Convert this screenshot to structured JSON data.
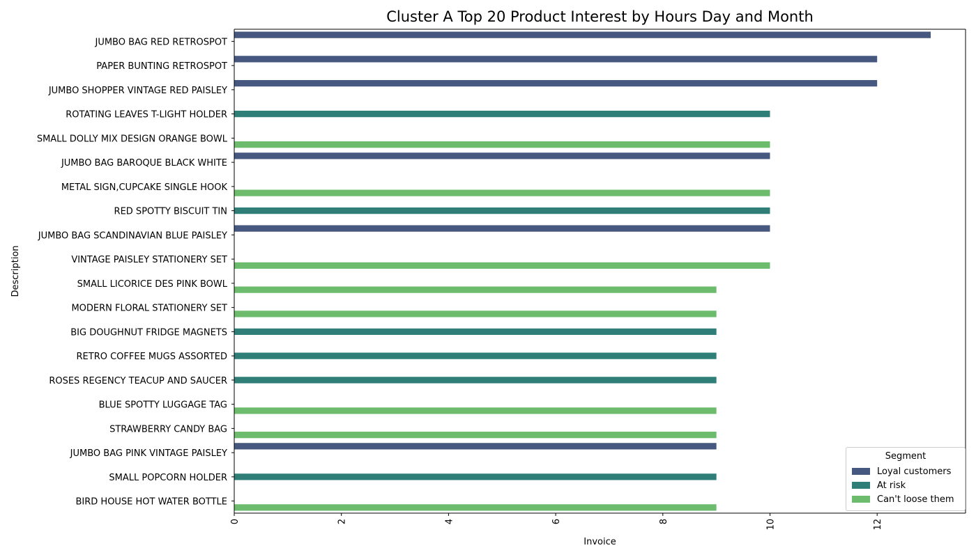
{
  "chart_data": {
    "type": "bar",
    "orientation": "horizontal",
    "title": "Cluster A Top 20 Product Interest by Hours Day and Month",
    "xlabel": "Invoice",
    "ylabel": "Description",
    "xlim": [
      0,
      13.65
    ],
    "xticks": [
      0,
      2,
      4,
      6,
      8,
      10,
      12
    ],
    "xtick_rotation": 90,
    "grid": false,
    "legend": {
      "title": "Segment",
      "position": "lower right"
    },
    "series": [
      {
        "name": "Loyal customers",
        "color": "#46587f"
      },
      {
        "name": "At risk",
        "color": "#2f7f78"
      },
      {
        "name": "Can't loose them",
        "color": "#6dbc6d"
      }
    ],
    "categories": [
      {
        "label": "JUMBO BAG RED RETROSPOT",
        "segment": "Loyal customers",
        "value": 13
      },
      {
        "label": "PAPER BUNTING RETROSPOT",
        "segment": "Loyal customers",
        "value": 12
      },
      {
        "label": "JUMBO SHOPPER VINTAGE RED PAISLEY",
        "segment": "Loyal customers",
        "value": 12
      },
      {
        "label": "ROTATING LEAVES T-LIGHT HOLDER",
        "segment": "At risk",
        "value": 10
      },
      {
        "label": "SMALL DOLLY MIX DESIGN ORANGE BOWL",
        "segment": "Can't loose them",
        "value": 10
      },
      {
        "label": "JUMBO  BAG BAROQUE BLACK WHITE",
        "segment": "Loyal customers",
        "value": 10
      },
      {
        "label": "METAL SIGN,CUPCAKE SINGLE HOOK",
        "segment": "Can't loose them",
        "value": 10
      },
      {
        "label": "RED SPOTTY BISCUIT TIN",
        "segment": "At risk",
        "value": 10
      },
      {
        "label": "JUMBO BAG SCANDINAVIAN BLUE PAISLEY",
        "segment": "Loyal customers",
        "value": 10
      },
      {
        "label": "VINTAGE PAISLEY STATIONERY SET",
        "segment": "Can't loose them",
        "value": 10
      },
      {
        "label": "SMALL LICORICE DES PINK BOWL",
        "segment": "Can't loose them",
        "value": 9
      },
      {
        "label": "MODERN FLORAL STATIONERY SET",
        "segment": "Can't loose them",
        "value": 9
      },
      {
        "label": "BIG DOUGHNUT FRIDGE MAGNETS",
        "segment": "At risk",
        "value": 9
      },
      {
        "label": "RETRO COFFEE MUGS ASSORTED",
        "segment": "At risk",
        "value": 9
      },
      {
        "label": "ROSES REGENCY TEACUP AND SAUCER ",
        "segment": "At risk",
        "value": 9
      },
      {
        "label": "BLUE SPOTTY LUGGAGE TAG ",
        "segment": "Can't loose them",
        "value": 9
      },
      {
        "label": "STRAWBERRY CANDY BAG",
        "segment": "Can't loose them",
        "value": 9
      },
      {
        "label": "JUMBO BAG PINK VINTAGE PAISLEY",
        "segment": "Loyal customers",
        "value": 9
      },
      {
        "label": "SMALL POPCORN HOLDER",
        "segment": "At risk",
        "value": 9
      },
      {
        "label": "BIRD HOUSE HOT WATER BOTTLE",
        "segment": "Can't loose them",
        "value": 9
      }
    ]
  }
}
